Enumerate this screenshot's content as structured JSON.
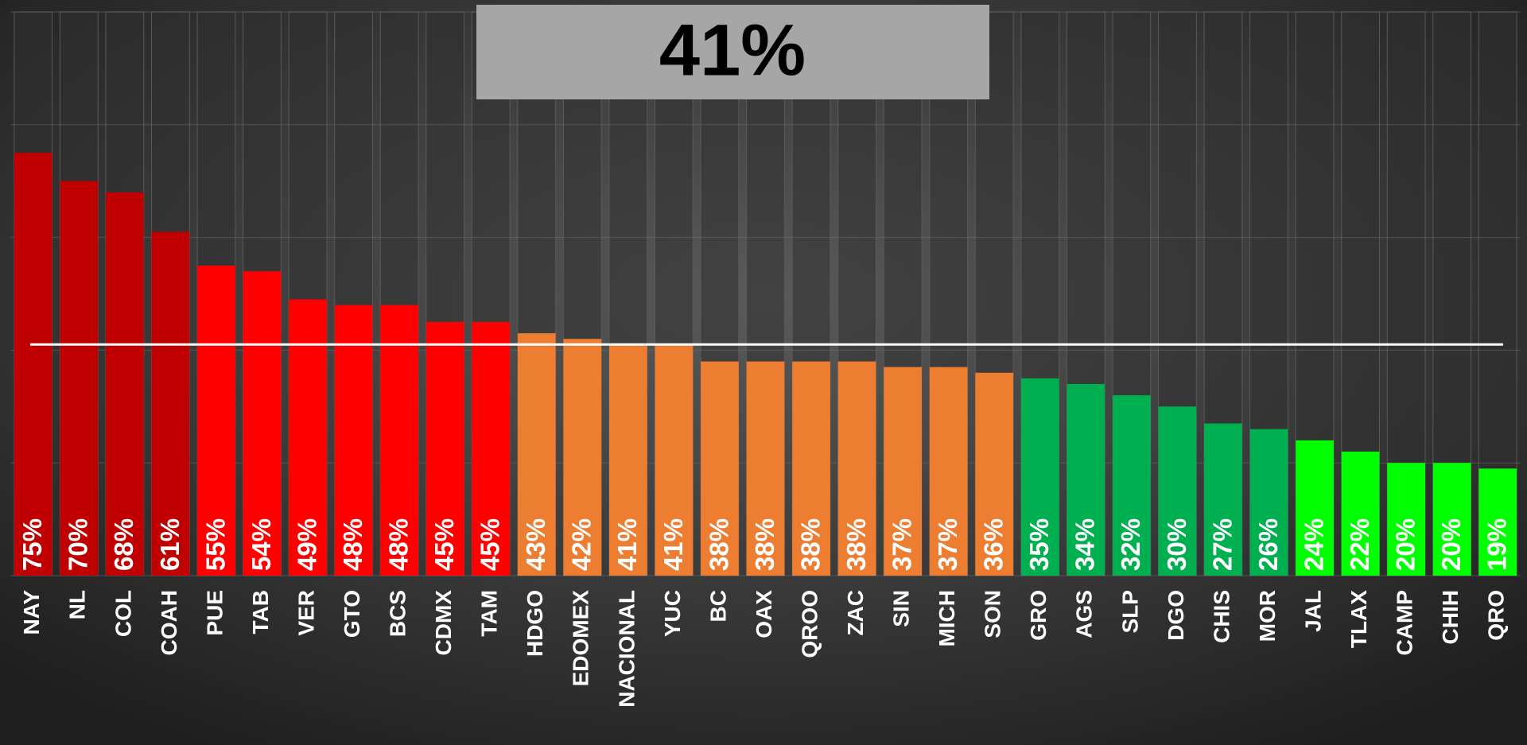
{
  "chart_data": {
    "type": "bar",
    "categories": [
      "NAY",
      "NL",
      "COL",
      "COAH",
      "PUE",
      "TAB",
      "VER",
      "GTO",
      "BCS",
      "CDMX",
      "TAM",
      "HDGO",
      "EDOMEX",
      "NACIONAL",
      "YUC",
      "BC",
      "OAX",
      "QROO",
      "ZAC",
      "SIN",
      "MICH",
      "SON",
      "GRO",
      "AGS",
      "SLP",
      "DGO",
      "CHIS",
      "MOR",
      "JAL",
      "TLAX",
      "CAMP",
      "CHIH",
      "QRO"
    ],
    "values": [
      75,
      70,
      68,
      61,
      55,
      54,
      49,
      48,
      48,
      45,
      45,
      43,
      42,
      41,
      41,
      38,
      38,
      38,
      38,
      37,
      37,
      36,
      35,
      34,
      32,
      30,
      27,
      26,
      24,
      22,
      20,
      20,
      19
    ],
    "value_labels": [
      "75%",
      "70%",
      "68%",
      "61%",
      "55%",
      "54%",
      "49%",
      "48%",
      "48%",
      "45%",
      "45%",
      "43%",
      "42%",
      "41%",
      "41%",
      "38%",
      "38%",
      "38%",
      "38%",
      "37%",
      "37%",
      "36%",
      "35%",
      "34%",
      "32%",
      "30%",
      "27%",
      "26%",
      "24%",
      "22%",
      "20%",
      "20%",
      "19%"
    ],
    "colors": [
      "#c00000",
      "#c00000",
      "#c00000",
      "#c00000",
      "#ff0000",
      "#ff0000",
      "#ff0000",
      "#ff0000",
      "#ff0000",
      "#ff0000",
      "#ff0000",
      "#ed7d31",
      "#ed7d31",
      "#ed7d31",
      "#ed7d31",
      "#ed7d31",
      "#ed7d31",
      "#ed7d31",
      "#ed7d31",
      "#ed7d31",
      "#ed7d31",
      "#ed7d31",
      "#00b050",
      "#00b050",
      "#00b050",
      "#00b050",
      "#00b050",
      "#00b050",
      "#00ff00",
      "#00ff00",
      "#00ff00",
      "#00ff00",
      "#00ff00"
    ],
    "ylim": [
      0,
      100
    ],
    "yticks": [
      0,
      20,
      40,
      60,
      80,
      100
    ],
    "grid": true,
    "reference": {
      "value": 41,
      "label": "41%"
    }
  }
}
